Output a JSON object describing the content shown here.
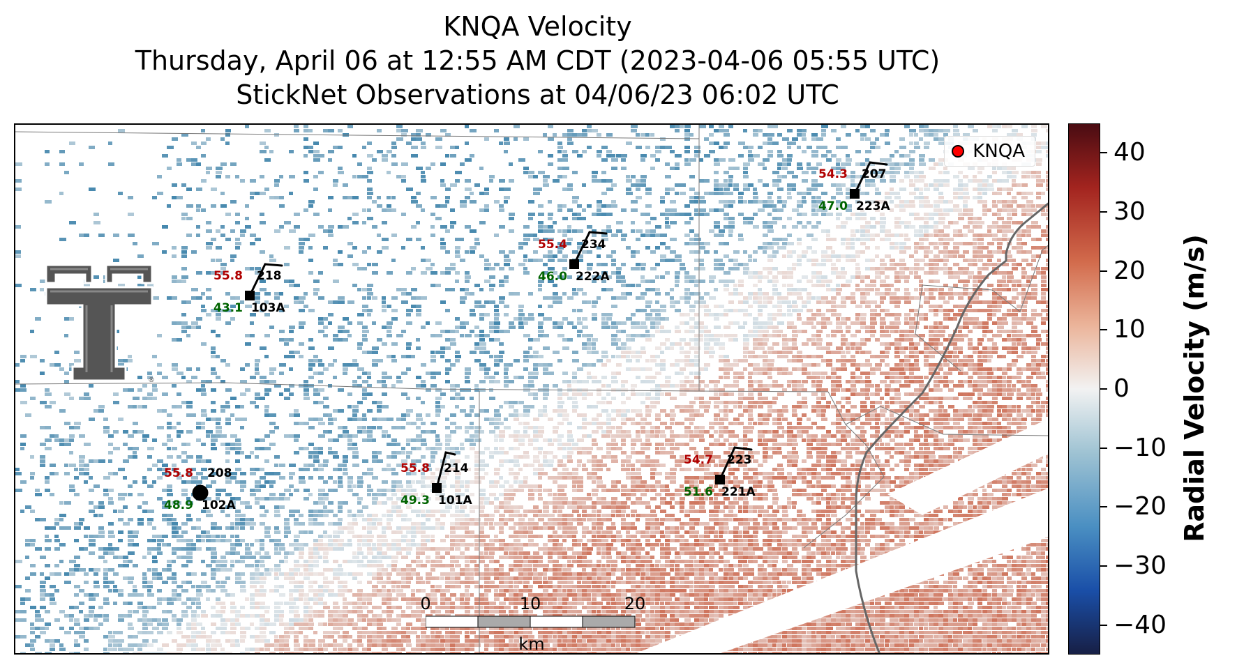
{
  "title": {
    "line1": "KNQA Velocity",
    "line2": "Thursday, April 06 at 12:55 AM CDT (2023-04-06 05:55 UTC)",
    "line3": "StickNet Observations at 04/06/23 06:02 UTC"
  },
  "legend": {
    "label": "KNQA",
    "marker_color": "#ff0000"
  },
  "stations": [
    {
      "top": "55.8",
      "id": "218",
      "bottom": "43.1",
      "sub_id": "103A"
    },
    {
      "top": "55.4",
      "id": "234",
      "bottom": "46.0",
      "sub_id": "222A"
    },
    {
      "top": "54.3",
      "id": "207",
      "bottom": "47.0",
      "sub_id": "223A"
    },
    {
      "top": "55.8",
      "id": "208",
      "bottom": "48.9",
      "sub_id": "102A"
    },
    {
      "top": "55.8",
      "id": "214",
      "bottom": "49.3",
      "sub_id": "101A"
    },
    {
      "top": "54.7",
      "id": "223",
      "bottom": "51.6",
      "sub_id": "221A"
    }
  ],
  "scalebar": {
    "ticks": [
      "0",
      "10",
      "20"
    ],
    "unit": "km"
  },
  "colorbar": {
    "title": "Radial Velocity (m/s)",
    "ticks": [
      "40",
      "30",
      "20",
      "10",
      "0",
      "−10",
      "−20",
      "−30",
      "−40"
    ],
    "min": -45,
    "max": 45
  },
  "colors": {
    "positive_velocity": "#d67a5e",
    "negative_velocity": "#3f86ad",
    "obs_temperature": "#b00000",
    "obs_dewpoint": "#006400"
  }
}
